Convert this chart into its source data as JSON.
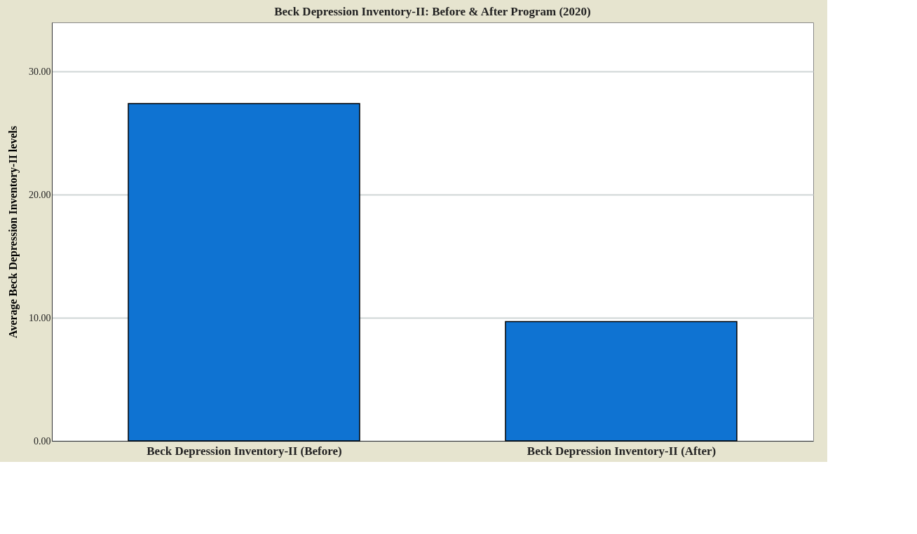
{
  "chart_data": {
    "type": "bar",
    "title": "Beck Depression Inventory-II: Before & After Program (2020)",
    "ylabel": "Average Beck Depression Inventory-II levels",
    "categories": [
      "Beck Depression Inventory-II (Before)",
      "Beck Depression Inventory-II (After)"
    ],
    "values": [
      27.4,
      9.7
    ],
    "color": "#0f73d2",
    "ylim": [
      0,
      34
    ],
    "yticks": [
      {
        "value": 0,
        "label": "0.00"
      },
      {
        "value": 10,
        "label": "10.00"
      },
      {
        "value": 20,
        "label": "20.00"
      },
      {
        "value": 30,
        "label": "30.00"
      }
    ],
    "grid": "y"
  }
}
